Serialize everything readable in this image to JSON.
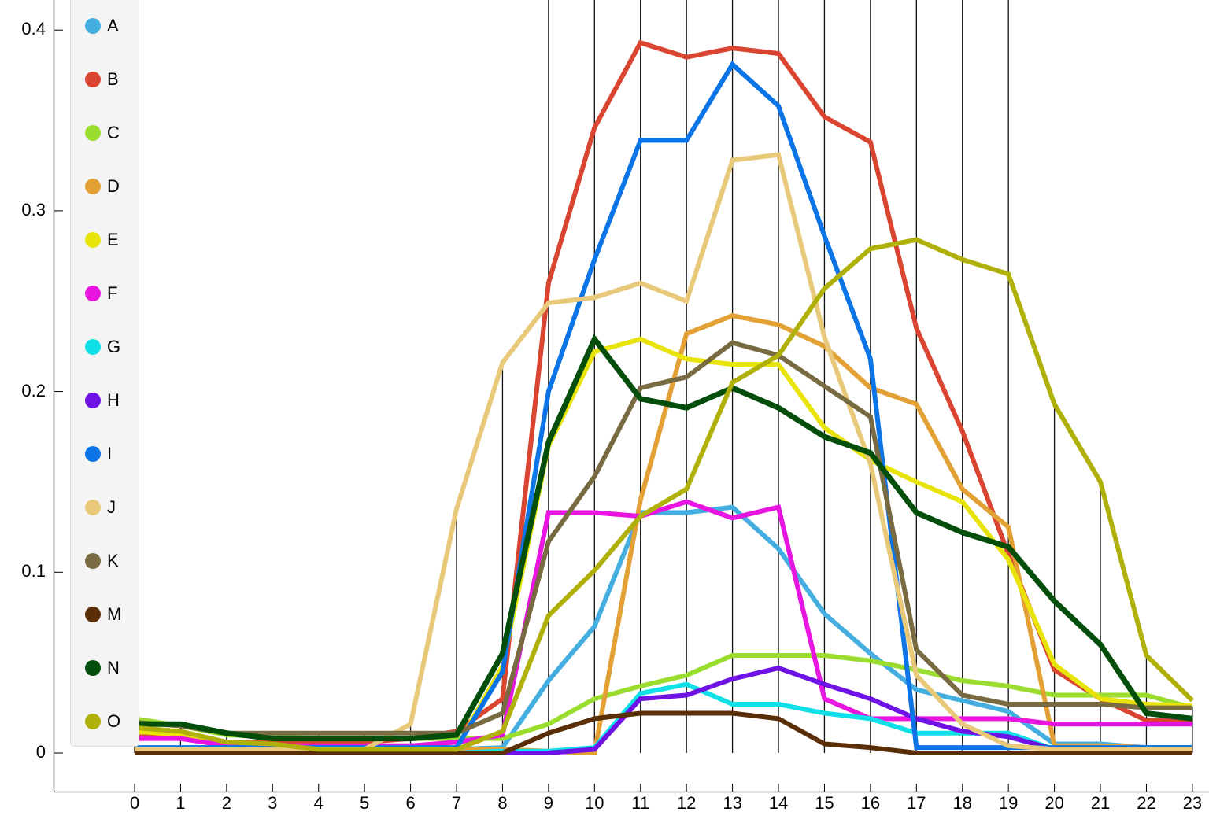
{
  "chart_data": {
    "type": "line",
    "title": "",
    "xlabel": "",
    "ylabel": "",
    "x": [
      0,
      1,
      2,
      3,
      4,
      5,
      6,
      7,
      8,
      9,
      10,
      11,
      12,
      13,
      14,
      15,
      16,
      17,
      18,
      19,
      20,
      21,
      22,
      23
    ],
    "xticks": [
      "0",
      "1",
      "2",
      "3",
      "4",
      "5",
      "6",
      "7",
      "8",
      "9",
      "10",
      "11",
      "12",
      "13",
      "14",
      "15",
      "16",
      "17",
      "18",
      "19",
      "20",
      "21",
      "22",
      "23"
    ],
    "yticks": [
      "0",
      "0.1",
      "0.2",
      "0.3",
      "0.4"
    ],
    "ytick_values": [
      0,
      0.1,
      0.2,
      0.3,
      0.4
    ],
    "ylim": [
      -0.02,
      0.415
    ],
    "grid": false,
    "legend_position": "upper-left",
    "series": [
      {
        "name": "A",
        "color": "#45AEE0",
        "values": [
          0.002,
          0.002,
          0.002,
          0.002,
          0.002,
          0.002,
          0.002,
          0.002,
          0.003,
          0.04,
          0.07,
          0.133,
          0.133,
          0.136,
          0.113,
          0.077,
          0.055,
          0.035,
          0.029,
          0.023,
          0.005,
          0.005,
          0.003,
          0.003
        ]
      },
      {
        "name": "B",
        "color": "#D94530",
        "values": [
          0.009,
          0.009,
          0.006,
          0.006,
          0.006,
          0.006,
          0.008,
          0.012,
          0.03,
          0.26,
          0.346,
          0.393,
          0.385,
          0.39,
          0.387,
          0.352,
          0.338,
          0.235,
          0.178,
          0.11,
          0.046,
          0.03,
          0.018,
          0.018
        ]
      },
      {
        "name": "C",
        "color": "#9BDD2E",
        "values": [
          0.019,
          0.015,
          0.01,
          0.009,
          0.008,
          0.008,
          0.008,
          0.008,
          0.008,
          0.016,
          0.03,
          0.037,
          0.043,
          0.054,
          0.054,
          0.054,
          0.051,
          0.046,
          0.04,
          0.037,
          0.032,
          0.032,
          0.032,
          0.025
        ]
      },
      {
        "name": "D",
        "color": "#E3A035",
        "values": [
          0.002,
          0.002,
          0.002,
          0.002,
          0.002,
          0.002,
          0.002,
          0.002,
          0.002,
          0.001,
          0.0,
          0.14,
          0.232,
          0.242,
          0.237,
          0.225,
          0.202,
          0.193,
          0.146,
          0.125,
          0.004,
          0.004,
          0.003,
          0.003
        ]
      },
      {
        "name": "E",
        "color": "#E8E40A",
        "values": [
          0.012,
          0.01,
          0.004,
          0.004,
          0.003,
          0.003,
          0.003,
          0.003,
          0.048,
          0.17,
          0.222,
          0.229,
          0.218,
          0.215,
          0.215,
          0.18,
          0.162,
          0.15,
          0.139,
          0.107,
          0.049,
          0.03,
          0.027,
          0.026
        ]
      },
      {
        "name": "F",
        "color": "#E815E0",
        "values": [
          0.008,
          0.008,
          0.004,
          0.004,
          0.004,
          0.004,
          0.004,
          0.006,
          0.01,
          0.133,
          0.133,
          0.131,
          0.139,
          0.13,
          0.136,
          0.03,
          0.019,
          0.019,
          0.019,
          0.019,
          0.016,
          0.016,
          0.016,
          0.016
        ]
      },
      {
        "name": "G",
        "color": "#0FE0E8",
        "values": [
          0.0,
          0.0,
          0.0,
          0.0,
          0.0,
          0.0,
          0.0,
          0.0,
          0.001,
          0.001,
          0.003,
          0.033,
          0.038,
          0.027,
          0.027,
          0.022,
          0.019,
          0.011,
          0.011,
          0.011,
          0.002,
          0.002,
          0.002,
          0.002
        ]
      },
      {
        "name": "H",
        "color": "#6E12E5",
        "values": [
          0.0,
          0.0,
          0.0,
          0.0,
          0.0,
          0.0,
          0.0,
          0.0,
          0.0,
          0.0,
          0.002,
          0.03,
          0.032,
          0.041,
          0.047,
          0.038,
          0.03,
          0.019,
          0.012,
          0.009,
          0.002,
          0.002,
          0.002,
          0.002
        ]
      },
      {
        "name": "I",
        "color": "#0B74E6",
        "values": [
          0.003,
          0.003,
          0.003,
          0.003,
          0.003,
          0.003,
          0.003,
          0.003,
          0.045,
          0.2,
          0.273,
          0.339,
          0.339,
          0.381,
          0.358,
          0.286,
          0.218,
          0.003,
          0.003,
          0.003,
          0.003,
          0.003,
          0.003,
          0.003
        ]
      },
      {
        "name": "J",
        "color": "#E8C97A",
        "values": [
          0.002,
          0.002,
          0.002,
          0.002,
          0.002,
          0.002,
          0.016,
          0.135,
          0.216,
          0.249,
          0.252,
          0.26,
          0.25,
          0.328,
          0.331,
          0.23,
          0.16,
          0.043,
          0.016,
          0.004,
          0.002,
          0.002,
          0.002,
          0.002
        ]
      },
      {
        "name": "K",
        "color": "#786B42",
        "values": [
          0.017,
          0.015,
          0.011,
          0.011,
          0.011,
          0.011,
          0.011,
          0.011,
          0.022,
          0.117,
          0.153,
          0.202,
          0.208,
          0.227,
          0.22,
          0.203,
          0.186,
          0.057,
          0.032,
          0.027,
          0.027,
          0.027,
          0.025,
          0.025
        ]
      },
      {
        "name": "M",
        "color": "#5A2E06",
        "values": [
          0.0,
          0.0,
          0.0,
          0.0,
          0.0,
          0.0,
          0.0,
          0.0,
          0.0,
          0.011,
          0.019,
          0.022,
          0.022,
          0.022,
          0.019,
          0.005,
          0.003,
          0.0,
          0.0,
          0.0,
          0.0,
          0.0,
          0.0,
          0.0
        ]
      },
      {
        "name": "N",
        "color": "#034E0A",
        "values": [
          0.016,
          0.016,
          0.011,
          0.008,
          0.008,
          0.008,
          0.008,
          0.01,
          0.055,
          0.172,
          0.229,
          0.196,
          0.191,
          0.202,
          0.191,
          0.175,
          0.166,
          0.133,
          0.122,
          0.114,
          0.084,
          0.06,
          0.022,
          0.019
        ]
      },
      {
        "name": "O",
        "color": "#B0B00A",
        "values": [
          0.014,
          0.012,
          0.006,
          0.005,
          0.002,
          0.002,
          0.002,
          0.002,
          0.012,
          0.076,
          0.101,
          0.131,
          0.146,
          0.205,
          0.22,
          0.257,
          0.279,
          0.284,
          0.273,
          0.265,
          0.193,
          0.15,
          0.054,
          0.029
        ]
      }
    ],
    "drop_lines_top": [
      0.017,
      0.016,
      0.011,
      0.011,
      0.011,
      0.011,
      0.016,
      0.135,
      0.216,
      0.42,
      0.42,
      0.42,
      0.42,
      0.42,
      0.42,
      0.42,
      0.42,
      0.42,
      0.42,
      0.42,
      0.193,
      0.15,
      0.054,
      0.026
    ]
  }
}
